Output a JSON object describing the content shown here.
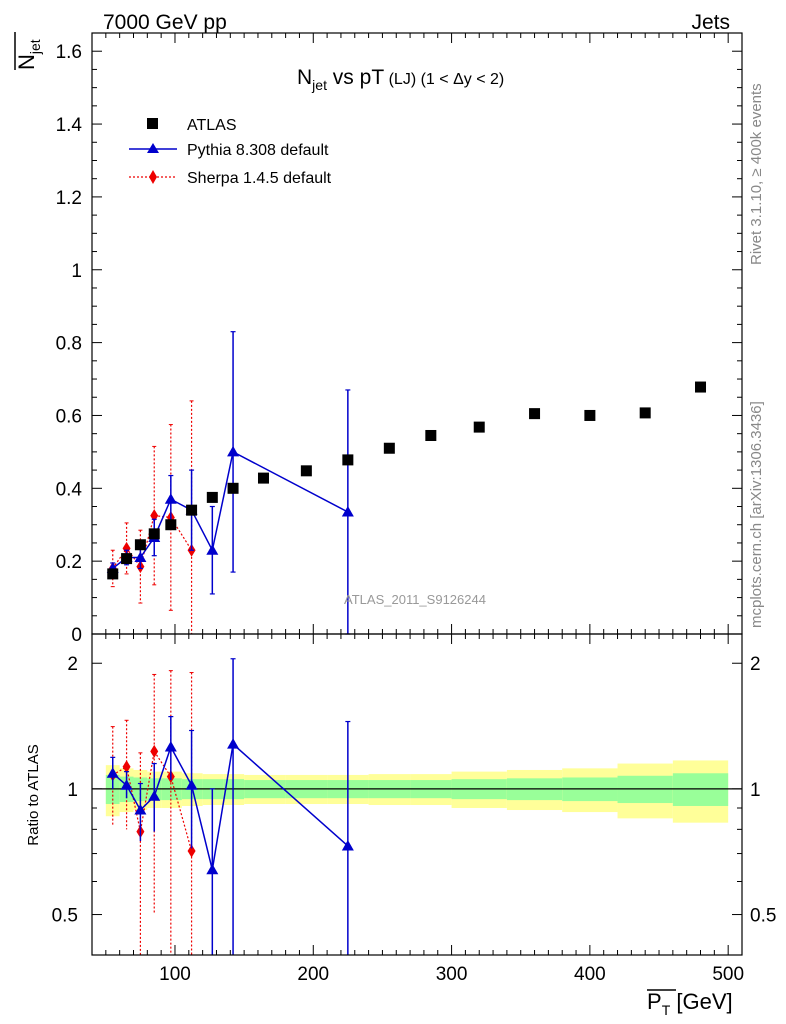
{
  "header": {
    "left": "7000 GeV pp",
    "right": "Jets"
  },
  "side_labels": {
    "rivet": "Rivet 3.1.10, ≥ 400k events",
    "mcplots": "mcplots.cern.ch [arXiv:1306.3436]"
  },
  "watermark": "ATLAS_2011_S9126244",
  "colors": {
    "atlas": "#000000",
    "pythia": "#0000cc",
    "sherpa": "#ee0000",
    "band_inner": "#99ff99",
    "band_outer": "#ffff99"
  },
  "chart_data": [
    {
      "type": "scatter",
      "title_main": "N",
      "title_sub": "jet",
      "title_rest": " vs pT",
      "title_tail": " (LJ) (1 < Δy < 2)",
      "ylabel_main": "N",
      "ylabel_sub": "jet",
      "ylim": [
        0,
        1.65
      ],
      "yticks": [
        0,
        0.2,
        0.4,
        0.6,
        0.8,
        1,
        1.2,
        1.4,
        1.6
      ],
      "ytick_labels": [
        "0",
        "0.2",
        "0.4",
        "0.6",
        "0.8",
        "1",
        "1.2",
        "1.4",
        "1.6"
      ],
      "legend": [
        "ATLAS",
        "Pythia 8.308 default",
        "Sherpa 1.4.5 default"
      ],
      "series": [
        {
          "name": "ATLAS",
          "style": "square",
          "x": [
            55,
            65,
            75,
            85,
            97,
            112,
            127,
            142,
            164,
            195,
            225,
            255,
            285,
            320,
            360,
            400,
            440,
            480
          ],
          "y": [
            0.165,
            0.207,
            0.245,
            0.275,
            0.3,
            0.34,
            0.375,
            0.4,
            0.428,
            0.448,
            0.478,
            0.51,
            0.545,
            0.568,
            0.605,
            0.6,
            0.607,
            0.678
          ]
        },
        {
          "name": "Pythia 8.308 default",
          "style": "triangle-line",
          "x": [
            55,
            65,
            75,
            85,
            97,
            112,
            127,
            142,
            225
          ],
          "y": [
            0.18,
            0.21,
            0.21,
            0.265,
            0.37,
            0.34,
            0.23,
            0.5,
            0.335
          ],
          "err": [
            0.015,
            0.02,
            0.03,
            0.05,
            0.065,
            0.11,
            0.12,
            0.33,
            0.335
          ]
        },
        {
          "name": "Sherpa 1.4.5 default",
          "style": "diamond-dotted",
          "x": [
            55,
            65,
            75,
            85,
            97,
            112
          ],
          "y": [
            0.18,
            0.235,
            0.185,
            0.325,
            0.32,
            0.23
          ],
          "err": [
            0.05,
            0.07,
            0.1,
            0.19,
            0.255,
            0.41
          ]
        }
      ]
    },
    {
      "type": "scatter",
      "ylabel": "Ratio to ATLAS",
      "xlabel_main": "P",
      "xlabel_sub": "T",
      "xlabel_unit": " [GeV]",
      "xlim": [
        40,
        510
      ],
      "xticks": [
        100,
        200,
        300,
        400,
        500
      ],
      "xtick_labels": [
        "100",
        "200",
        "300",
        "400",
        "500"
      ],
      "ylim": [
        0.4,
        2.35
      ],
      "yscale": "log",
      "yticks": [
        0.5,
        1,
        2
      ],
      "ytick_labels": [
        "0.5",
        "1",
        "2"
      ],
      "band_edges": [
        50,
        60,
        70,
        80,
        90,
        105,
        120,
        135,
        150,
        180,
        210,
        240,
        270,
        300,
        340,
        380,
        420,
        460,
        500
      ],
      "band_inner": [
        0.08,
        0.07,
        0.065,
        0.06,
        0.06,
        0.055,
        0.055,
        0.055,
        0.05,
        0.05,
        0.05,
        0.05,
        0.05,
        0.055,
        0.06,
        0.065,
        0.075,
        0.09
      ],
      "band_outer": [
        0.14,
        0.12,
        0.11,
        0.1,
        0.1,
        0.09,
        0.085,
        0.085,
        0.08,
        0.08,
        0.08,
        0.085,
        0.085,
        0.1,
        0.11,
        0.12,
        0.15,
        0.17
      ],
      "series": [
        {
          "name": "Pythia 8.308 default",
          "x": [
            55,
            65,
            75,
            85,
            97,
            112,
            127,
            142,
            225
          ],
          "y": [
            1.09,
            1.02,
            0.89,
            0.96,
            1.26,
            1.02,
            0.64,
            1.28,
            0.73
          ],
          "lo": [
            1.0,
            0.95,
            0.75,
            0.79,
            1.05,
            0.72,
            0.3,
            0.4,
            0.3
          ],
          "hi": [
            1.19,
            1.1,
            1.03,
            1.15,
            1.49,
            1.38,
            1.0,
            2.05,
            1.45
          ]
        },
        {
          "name": "Sherpa 1.4.5 default",
          "x": [
            55,
            65,
            75,
            85,
            97,
            112
          ],
          "y": [
            1.08,
            1.13,
            0.79,
            1.23,
            1.07,
            0.71
          ],
          "lo": [
            0.82,
            0.8,
            0.4,
            0.5,
            0.3,
            0.3
          ],
          "hi": [
            1.41,
            1.46,
            1.22,
            1.88,
            1.92,
            1.9
          ]
        }
      ]
    }
  ]
}
